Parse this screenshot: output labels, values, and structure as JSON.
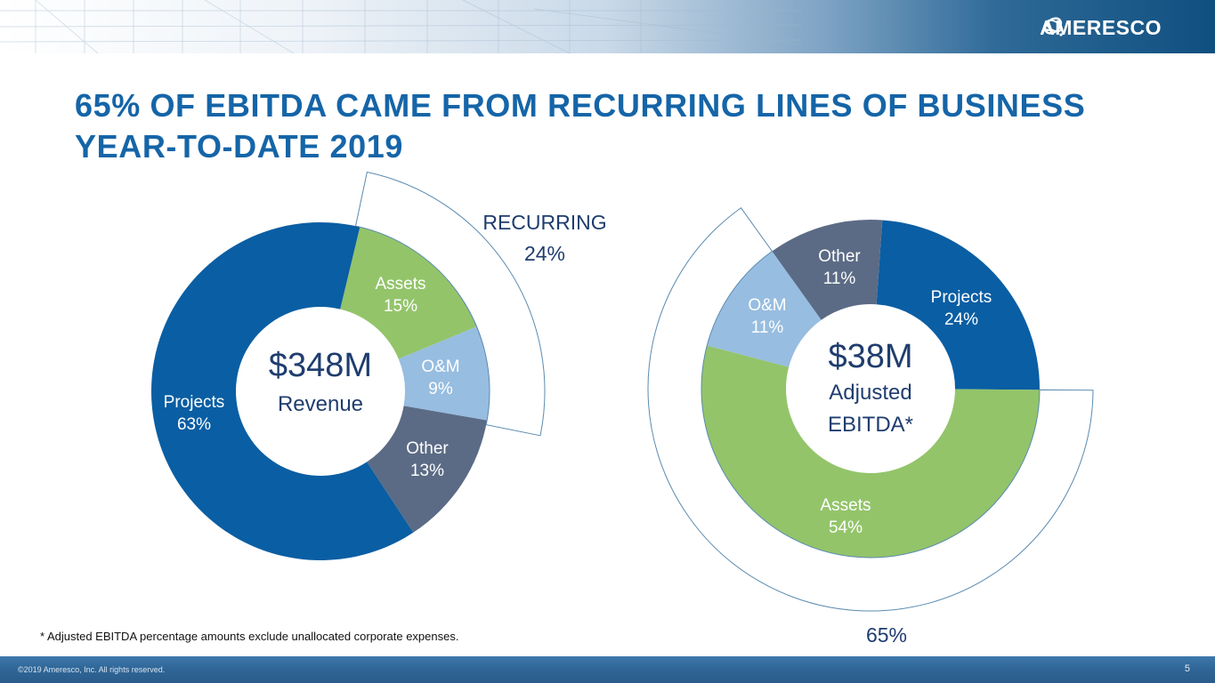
{
  "header": {
    "logo_text": "AMERESCO",
    "logo_icon": "ameresco-orbit-logo-icon"
  },
  "title": "65% OF EBITDA CAME FROM RECURRING LINES OF BUSINESS YEAR-TO-DATE 2019",
  "footnote": "* Adjusted EBITDA percentage amounts exclude unallocated corporate expenses.",
  "footer": {
    "copyright": "©2019 Ameresco, Inc. All rights reserved.",
    "page_number": "5"
  },
  "colors": {
    "projects": "#0a5ea3",
    "assets": "#93c46a",
    "om": "#97bde0",
    "other": "#5b6b85",
    "title": "#1565a8",
    "center_text": "#1f3d6e",
    "bracket_line": "#5b8bb0"
  },
  "chart_data": [
    {
      "type": "pie",
      "variant": "donut",
      "name": "revenue",
      "center_value": "$348M",
      "center_label": "Revenue",
      "slices": [
        {
          "label": "Assets",
          "value": 15,
          "display": "15%",
          "color": "#93c46a"
        },
        {
          "label": "O&M",
          "value": 9,
          "display": "9%",
          "color": "#97bde0"
        },
        {
          "label": "Other",
          "value": 13,
          "display": "13%",
          "color": "#5b6b85"
        },
        {
          "label": "Projects",
          "value": 63,
          "display": "63%",
          "color": "#0a5ea3"
        }
      ],
      "bracket": {
        "label": "RECURRING",
        "value_display": "24%",
        "covers": [
          "Assets",
          "O&M"
        ]
      }
    },
    {
      "type": "pie",
      "variant": "donut",
      "name": "adjusted-ebitda",
      "center_value": "$38M",
      "center_label_line1": "Adjusted",
      "center_label_line2": "EBITDA*",
      "slices": [
        {
          "label": "Projects",
          "value": 24,
          "display": "24%",
          "color": "#0a5ea3"
        },
        {
          "label": "Assets",
          "value": 54,
          "display": "54%",
          "color": "#93c46a"
        },
        {
          "label": "O&M",
          "value": 11,
          "display": "11%",
          "color": "#97bde0"
        },
        {
          "label": "Other",
          "value": 11,
          "display": "11%",
          "color": "#5b6b85"
        }
      ],
      "bracket": {
        "label": "",
        "value_display": "65%",
        "covers": [
          "Assets",
          "O&M"
        ]
      }
    }
  ]
}
